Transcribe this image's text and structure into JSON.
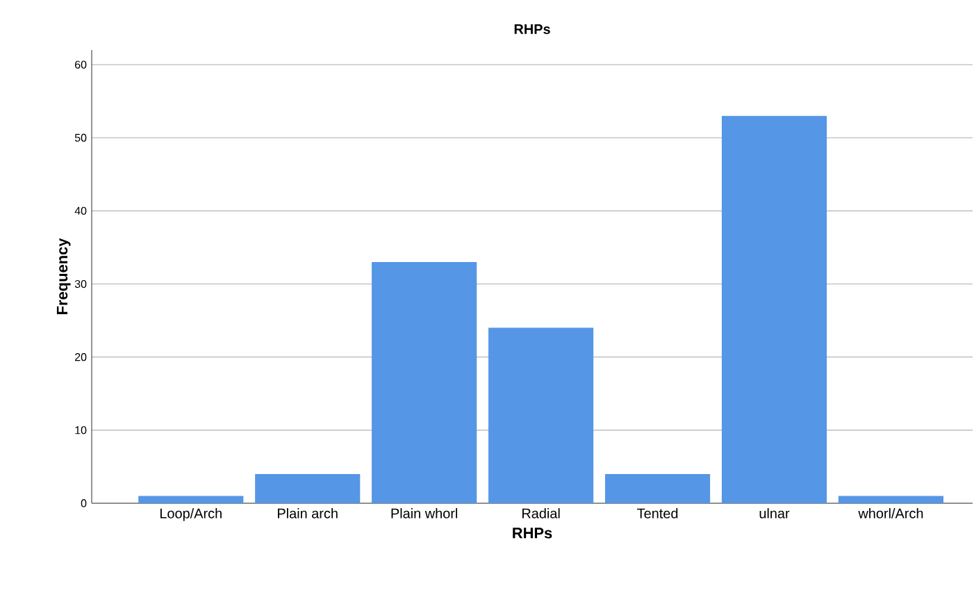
{
  "chart_data": {
    "type": "bar",
    "title": "RHPs",
    "xlabel": "RHPs",
    "ylabel": "Frequency",
    "categories": [
      "Loop/Arch",
      "Plain arch",
      "Plain whorl",
      "Radial",
      "Tented",
      "ulnar",
      "whorl/Arch"
    ],
    "values": [
      1,
      4,
      33,
      24,
      4,
      53,
      1
    ],
    "color": "#5596e6",
    "ylim": [
      0,
      62
    ],
    "yticks": [
      0,
      10,
      20,
      30,
      40,
      50,
      60
    ],
    "grid": "y"
  }
}
